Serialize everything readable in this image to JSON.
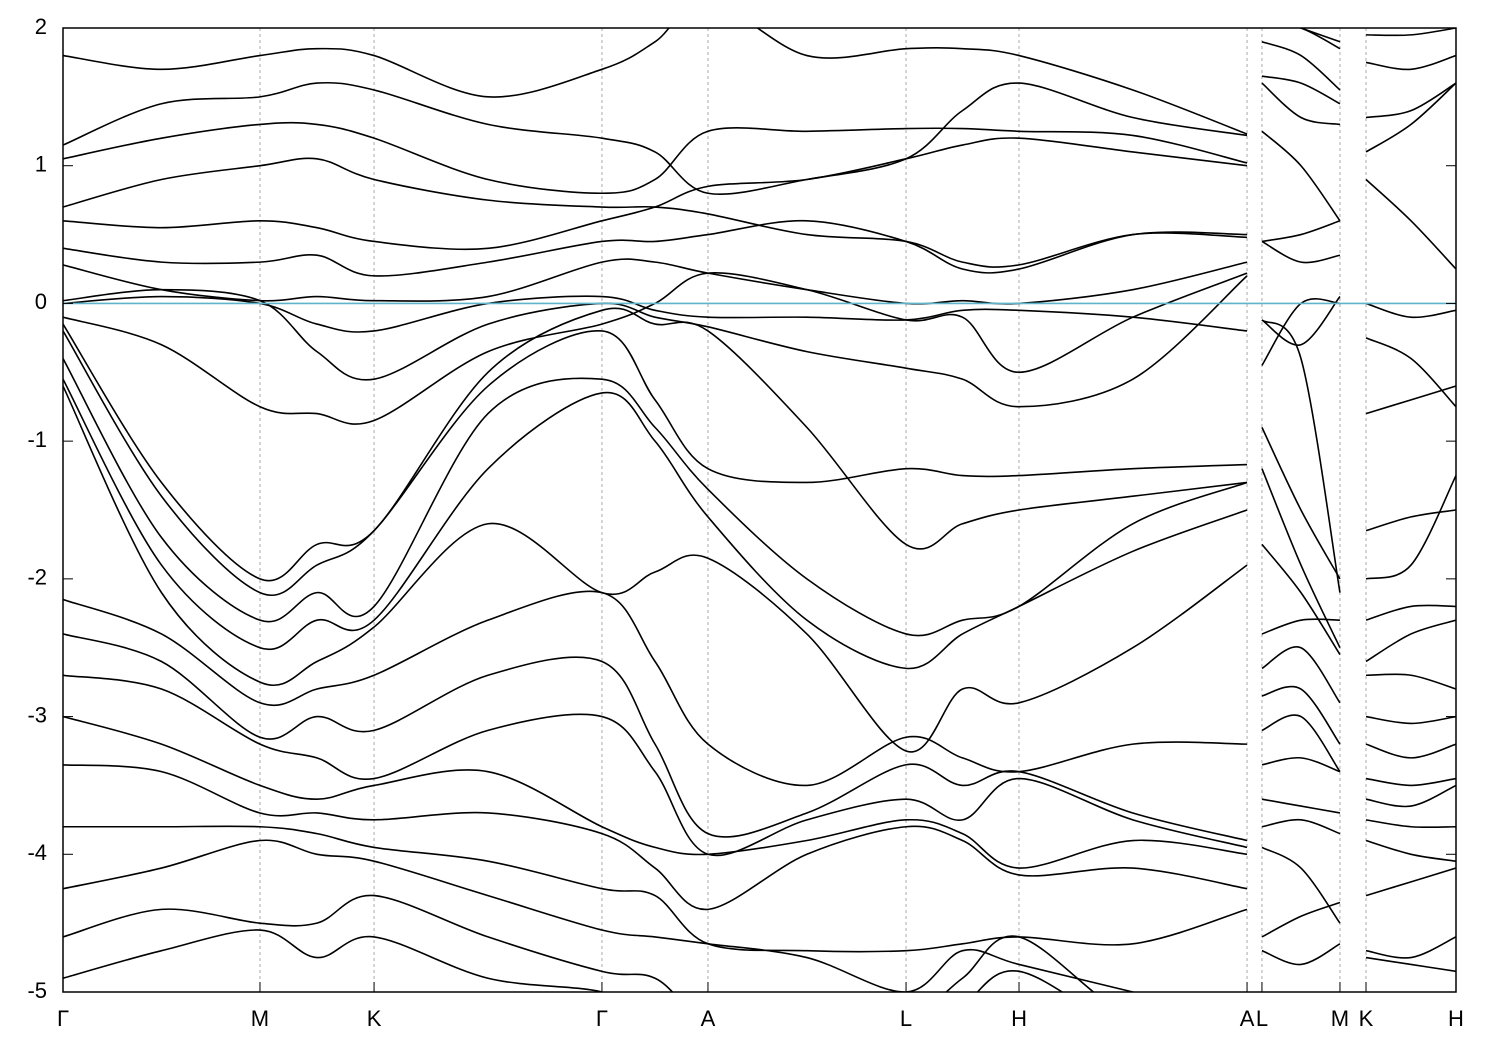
{
  "chart_data": {
    "type": "line",
    "line_color": "#000000",
    "reference_line": {
      "y": 0,
      "color": "#5fb4c8"
    },
    "grid": true,
    "ylim": [
      -5,
      2
    ],
    "yticks": [
      2,
      1,
      0,
      -1,
      -2,
      -3,
      -4,
      -5
    ],
    "xlim": [
      0,
      1
    ],
    "xticks": [
      {
        "value": 0,
        "label": "Γ"
      },
      {
        "value": 0.1414,
        "label": "M"
      },
      {
        "value": 0.2233,
        "label": "K"
      },
      {
        "value": 0.3869,
        "label": "Γ"
      },
      {
        "value": 0.463,
        "label": "A"
      },
      {
        "value": 0.6052,
        "label": "L"
      },
      {
        "value": 0.6863,
        "label": "H"
      },
      {
        "value": 0.85,
        "label": "A"
      },
      {
        "value": 0.8607,
        "label": "L"
      },
      {
        "value": 0.9167,
        "label": "M"
      },
      {
        "value": 0.9354,
        "label": "K"
      },
      {
        "value": 1,
        "label": "H"
      }
    ],
    "x": [
      0,
      0.0707,
      0.1414,
      0.1823,
      0.2233,
      0.3051,
      0.3869,
      0.425,
      0.463,
      0.534,
      0.6052,
      0.6457,
      0.6863,
      0.768,
      0.85,
      0.855,
      0.8607,
      0.8887,
      0.9167,
      0.926,
      0.9354,
      0.9677,
      1
    ],
    "series": [
      {
        "values": [
          -0.15,
          -1.3,
          -2.0,
          -1.75,
          -1.65,
          -0.5,
          -0.05,
          -0.15,
          -0.2,
          -0.9,
          -1.75,
          -1.6,
          -1.5,
          -1.4,
          -1.3,
          null,
          -0.12,
          -0.4,
          -2.1,
          null,
          -1.65,
          -1.55,
          -1.5
        ]
      },
      {
        "values": [
          -0.2,
          -1.4,
          -2.1,
          -1.9,
          -1.65,
          -0.6,
          -0.2,
          -0.7,
          -1.2,
          -1.3,
          -1.2,
          -1.25,
          -1.25,
          -1.2,
          -1.17,
          null,
          -0.9,
          -1.5,
          -2.0,
          null,
          -2.0,
          -1.9,
          -1.25
        ]
      },
      {
        "values": [
          -0.4,
          -1.7,
          -2.3,
          -2.1,
          -2.2,
          -0.8,
          -0.55,
          -0.9,
          -1.35,
          -2.0,
          -2.4,
          -2.3,
          -2.2,
          -1.6,
          -1.3,
          null,
          -1.2,
          -1.9,
          -2.5,
          null,
          -2.3,
          -2.2,
          -2.2
        ]
      },
      {
        "values": [
          -0.55,
          -1.9,
          -2.5,
          -2.3,
          -2.3,
          -1.2,
          -0.65,
          -1.0,
          -1.55,
          -2.3,
          -2.65,
          -2.4,
          -2.2,
          -1.8,
          -1.5,
          null,
          -1.75,
          -2.1,
          -2.55,
          null,
          -2.6,
          -2.4,
          -2.3
        ]
      },
      {
        "values": [
          -0.6,
          -2.1,
          -2.75,
          -2.6,
          -2.35,
          -1.6,
          -2.1,
          -1.95,
          -1.85,
          -2.4,
          -3.25,
          -2.8,
          -2.9,
          -2.5,
          -1.9,
          null,
          -2.4,
          -2.3,
          -2.3,
          null,
          -2.7,
          -2.7,
          -2.8
        ]
      },
      {
        "values": [
          -2.15,
          -2.4,
          -2.9,
          -2.8,
          -2.7,
          -2.3,
          -2.1,
          -2.6,
          -3.2,
          -3.5,
          -3.15,
          -3.3,
          -3.4,
          -3.2,
          -3.2,
          null,
          -2.65,
          -2.5,
          -2.9,
          null,
          -3.0,
          -3.05,
          -3.0
        ]
      },
      {
        "values": [
          -2.4,
          -2.6,
          -3.15,
          -3.0,
          -3.1,
          -2.7,
          -2.6,
          -3.2,
          -3.85,
          -3.7,
          -3.35,
          -3.5,
          -3.4,
          -3.7,
          -3.9,
          null,
          -2.85,
          -2.8,
          -3.2,
          null,
          -3.2,
          -3.3,
          -3.2
        ]
      },
      {
        "values": [
          -2.7,
          -2.8,
          -3.2,
          -3.3,
          -3.45,
          -3.1,
          -3.0,
          -3.4,
          -4.0,
          -3.75,
          -3.6,
          -3.75,
          -3.45,
          -3.75,
          -3.95,
          null,
          -3.1,
          -3.0,
          -3.4,
          null,
          -3.45,
          -3.5,
          -3.45
        ]
      },
      {
        "values": [
          -3.0,
          -3.2,
          -3.5,
          -3.6,
          -3.5,
          -3.4,
          -3.8,
          -3.95,
          -4.0,
          -3.9,
          -3.75,
          -3.85,
          -4.1,
          -3.9,
          -4.0,
          null,
          -3.35,
          -3.3,
          -3.4,
          null,
          -3.6,
          -3.65,
          -3.5
        ]
      },
      {
        "values": [
          -3.35,
          -3.4,
          -3.7,
          -3.7,
          -3.75,
          -3.7,
          -3.85,
          -4.1,
          -4.4,
          -4.0,
          -3.8,
          -3.9,
          -4.15,
          -4.1,
          -4.25,
          null,
          -3.6,
          -3.65,
          -3.7,
          null,
          -3.75,
          -3.8,
          -3.8
        ]
      },
      {
        "values": [
          -3.8,
          -3.8,
          -3.8,
          -3.85,
          -3.95,
          -4.05,
          -4.25,
          -4.3,
          -4.65,
          -4.7,
          -4.7,
          -4.65,
          -4.6,
          -4.65,
          -4.4,
          null,
          -3.8,
          -3.75,
          -3.85,
          null,
          -3.9,
          -4.0,
          -4.05
        ]
      },
      {
        "values": [
          -4.25,
          -4.1,
          -3.9,
          -4.0,
          -4.05,
          -4.3,
          -4.55,
          -4.6,
          -4.65,
          -4.75,
          -5.0,
          -4.7,
          -4.8,
          -5.0,
          -5.2,
          null,
          -3.95,
          -4.1,
          -4.5,
          null,
          -4.3,
          -4.2,
          -4.1
        ]
      },
      {
        "values": [
          -4.6,
          -4.4,
          -4.5,
          -4.5,
          -4.3,
          -4.6,
          -4.85,
          -4.9,
          -5.2,
          -5.3,
          -5.2,
          -4.9,
          -4.6,
          -5.2,
          -5.4,
          null,
          -4.6,
          -4.45,
          -4.35,
          null,
          -4.7,
          -4.75,
          -4.6
        ]
      },
      {
        "values": [
          -4.9,
          -4.7,
          -4.55,
          -4.75,
          -4.6,
          -4.9,
          -5.0,
          -5.2,
          -5.4,
          -5.5,
          -5.4,
          -5.1,
          -4.85,
          -5.3,
          -5.5,
          null,
          -4.7,
          -4.8,
          -4.65,
          null,
          -4.75,
          -4.8,
          -4.85
        ]
      },
      {
        "values": [
          0.0,
          0.05,
          0.0,
          -0.15,
          -0.2,
          0.0,
          0.05,
          -0.05,
          -0.1,
          -0.1,
          -0.12,
          -0.05,
          -0.05,
          -0.1,
          -0.2,
          null,
          -0.45,
          0.0,
          0.0,
          null,
          -0.8,
          -0.7,
          -0.6
        ]
      },
      {
        "values": [
          0.02,
          0.1,
          0.02,
          -0.35,
          -0.55,
          -0.15,
          0.0,
          -0.1,
          -0.17,
          -0.35,
          -0.47,
          -0.55,
          -0.75,
          -0.55,
          0.2,
          null,
          -0.12,
          -0.3,
          0.05,
          null,
          -0.25,
          -0.4,
          -0.75
        ]
      },
      {
        "values": [
          -0.1,
          -0.3,
          -0.75,
          -0.8,
          -0.85,
          -0.35,
          -0.15,
          0.0,
          0.22,
          0.1,
          -0.12,
          -0.1,
          -0.5,
          -0.1,
          0.22,
          null,
          0.45,
          0.3,
          0.35,
          null,
          0.0,
          -0.1,
          -0.05
        ]
      },
      {
        "values": [
          0.28,
          0.1,
          0.02,
          0.05,
          0.02,
          0.05,
          0.3,
          0.3,
          0.22,
          0.1,
          0.0,
          0.02,
          0.0,
          0.1,
          0.3,
          null,
          0.45,
          0.5,
          0.6,
          null,
          0.9,
          0.6,
          0.25
        ]
      },
      {
        "values": [
          0.4,
          0.3,
          0.3,
          0.35,
          0.2,
          0.3,
          0.45,
          0.45,
          0.5,
          0.6,
          0.45,
          0.25,
          0.25,
          0.5,
          0.5,
          null,
          1.25,
          1.0,
          0.6,
          null,
          1.1,
          1.3,
          1.6
        ]
      },
      {
        "values": [
          0.6,
          0.55,
          0.6,
          0.55,
          0.45,
          0.4,
          0.6,
          0.7,
          0.85,
          0.9,
          1.05,
          1.15,
          1.2,
          1.1,
          1.0,
          null,
          1.6,
          1.35,
          1.3,
          null,
          1.35,
          1.4,
          1.6
        ]
      },
      {
        "values": [
          0.7,
          0.9,
          1.0,
          1.05,
          0.9,
          0.75,
          0.7,
          0.7,
          0.65,
          0.5,
          0.45,
          0.3,
          0.28,
          0.5,
          0.48,
          null,
          1.65,
          1.6,
          1.45,
          null,
          1.75,
          1.7,
          1.8
        ]
      },
      {
        "values": [
          1.05,
          1.2,
          1.3,
          1.3,
          1.2,
          0.9,
          0.8,
          0.9,
          1.25,
          1.25,
          1.27,
          1.27,
          1.25,
          1.22,
          1.02,
          null,
          1.9,
          1.8,
          1.55,
          null,
          1.95,
          1.95,
          2.0
        ]
      },
      {
        "values": [
          1.15,
          1.45,
          1.5,
          1.6,
          1.55,
          1.3,
          1.2,
          1.1,
          0.8,
          0.9,
          1.05,
          1.4,
          1.6,
          1.35,
          1.22,
          null,
          2.05,
          2.0,
          1.85,
          null,
          2.05,
          2.05,
          2.1
        ]
      },
      {
        "values": [
          1.8,
          1.7,
          1.8,
          1.85,
          1.8,
          1.5,
          1.7,
          1.9,
          2.2,
          1.8,
          1.85,
          1.85,
          1.8,
          1.55,
          1.23,
          null,
          2.1,
          2.0,
          1.9,
          null,
          2.1,
          2.1,
          2.1
        ]
      }
    ]
  }
}
